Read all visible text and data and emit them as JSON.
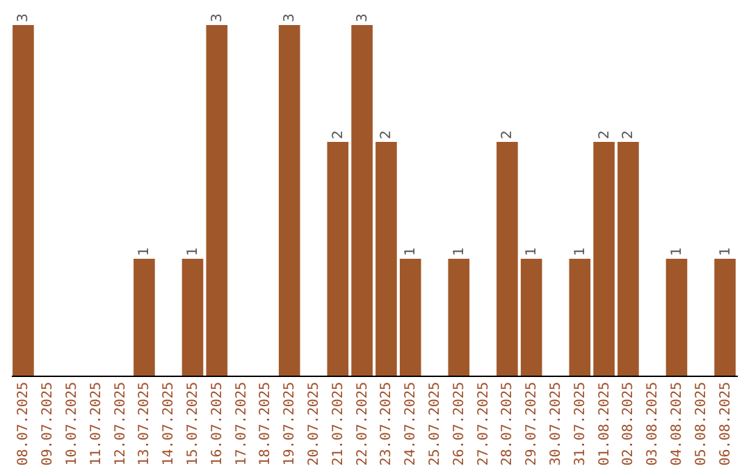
{
  "chart_data": {
    "type": "bar",
    "categories": [
      "08.07.2025",
      "09.07.2025",
      "10.07.2025",
      "11.07.2025",
      "12.07.2025",
      "13.07.2025",
      "14.07.2025",
      "15.07.2025",
      "16.07.2025",
      "17.07.2025",
      "18.07.2025",
      "19.07.2025",
      "20.07.2025",
      "21.07.2025",
      "22.07.2025",
      "23.07.2025",
      "24.07.2025",
      "25.07.2025",
      "26.07.2025",
      "27.07.2025",
      "28.07.2025",
      "29.07.2025",
      "30.07.2025",
      "31.07.2025",
      "01.08.2025",
      "02.08.2025",
      "03.08.2025",
      "04.08.2025",
      "05.08.2025",
      "06.08.2025"
    ],
    "values": [
      3,
      0,
      0,
      0,
      0,
      1,
      0,
      1,
      3,
      0,
      0,
      3,
      0,
      2,
      3,
      2,
      1,
      0,
      1,
      0,
      2,
      1,
      0,
      1,
      2,
      2,
      0,
      1,
      0,
      1
    ],
    "value_labels": [
      "3",
      null,
      null,
      null,
      null,
      "1",
      null,
      "1",
      "3",
      null,
      null,
      "3",
      null,
      "2",
      "3",
      "2",
      "1",
      null,
      "1",
      null,
      "2",
      "1",
      null,
      "1",
      "2",
      "2",
      null,
      "1",
      null,
      "1"
    ],
    "color": "#a0582a"
  }
}
